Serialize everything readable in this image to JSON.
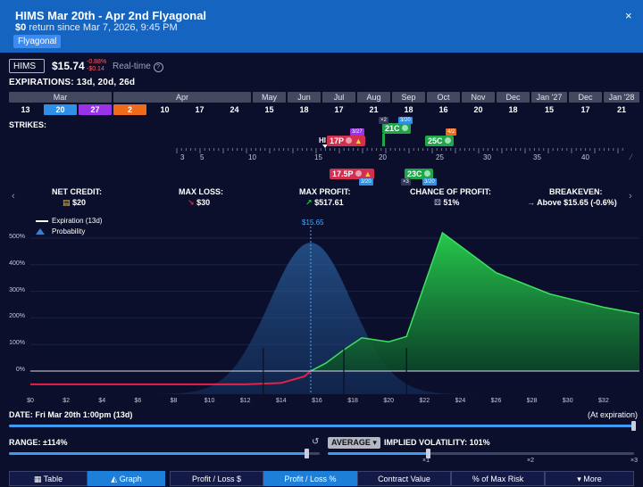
{
  "header": {
    "title": "HIMS Mar 20th - Apr 2nd Flyagonal",
    "return_amount": "$0",
    "return_text": "return since Mar 7, 2026, 9:45 PM",
    "tag": "Flyagonal",
    "close": "×"
  },
  "ticker": {
    "symbol": "HIMS",
    "price": "$15.74",
    "change_pct": "-0.88%",
    "change_abs": "-$0.14",
    "realtime": "Real-time",
    "info": "?"
  },
  "expirations": {
    "label": "EXPIRATIONS: 13d, 20d, 26d",
    "months": [
      "Mar",
      "Apr",
      "May",
      "Jun",
      "Jul",
      "Aug",
      "Sep",
      "Oct",
      "Nov",
      "Dec",
      "Jan '27",
      "Dec",
      "Jan '28"
    ],
    "days": [
      "13",
      "20",
      "27",
      "2",
      "10",
      "17",
      "24",
      "15",
      "18",
      "17",
      "21",
      "18",
      "16",
      "20",
      "18",
      "15",
      "17",
      "21"
    ]
  },
  "strikes": {
    "label": "STRIKES:",
    "hi": "HI",
    "axis": [
      "3",
      "5",
      "10",
      "15",
      "20",
      "25",
      "30",
      "35",
      "40"
    ],
    "legs": [
      {
        "label": "17P",
        "date": "3/27"
      },
      {
        "label": "21C",
        "date": "3/20",
        "qty": "×2"
      },
      {
        "label": "25C",
        "date": "4/2"
      },
      {
        "label": "17.5P",
        "date": "3/20"
      },
      {
        "label": "23C",
        "date": "3/20",
        "qty": "×3"
      }
    ],
    "colors": {
      "put": "#d32f4e",
      "call": "#1fa64a",
      "orange": "#f06a1c",
      "purple": "#9a32e8",
      "blue": "#2d8fe6"
    }
  },
  "stats": [
    {
      "label": "NET CREDIT:",
      "value": "$20",
      "icon": "coins-icon"
    },
    {
      "label": "MAX LOSS:",
      "value": "$30",
      "icon": "arrow-down-right-icon"
    },
    {
      "label": "MAX PROFIT:",
      "value": "$517.61",
      "icon": "arrow-up-right-icon"
    },
    {
      "label": "CHANCE OF PROFIT:",
      "value": "51%",
      "icon": "dice-icon"
    },
    {
      "label": "BREAKEVEN:",
      "value": "Above $15.65 (-0.6%)",
      "icon": "arrow-right-icon"
    }
  ],
  "chart": {
    "legend_expiration": "Expiration (13d)",
    "legend_probability": "Probability",
    "price_marker": "$15.65",
    "y_ticks": [
      "500%",
      "400%",
      "300%",
      "200%",
      "100%",
      "0%"
    ],
    "x_ticks": [
      "$0",
      "$2",
      "$4",
      "$6",
      "$8",
      "$10",
      "$12",
      "$14",
      "$16",
      "$18",
      "$20",
      "$22",
      "$24",
      "$26",
      "$28",
      "$30",
      "$32"
    ]
  },
  "chart_data": {
    "type": "area",
    "xlabel": "",
    "ylabel": "",
    "xlim": [
      0,
      34
    ],
    "ylim": [
      -50,
      580
    ],
    "series": [
      {
        "name": "Expiration (13d)",
        "points": [
          [
            0,
            -50
          ],
          [
            12,
            -50
          ],
          [
            14,
            -45
          ],
          [
            15.3,
            -20
          ],
          [
            15.65,
            0
          ],
          [
            16.5,
            30
          ],
          [
            17.5,
            80
          ],
          [
            18.5,
            125
          ],
          [
            20,
            110
          ],
          [
            21,
            130
          ],
          [
            23,
            520
          ],
          [
            26,
            370
          ],
          [
            29,
            290
          ],
          [
            32,
            240
          ],
          [
            34,
            215
          ]
        ]
      }
    ],
    "probability_peak_x": 15.65,
    "colors": {
      "profit": "#1fce4a",
      "loss": "#e3224a",
      "probability": "#1e4c86",
      "marker": "#4aa8ff"
    }
  },
  "controls": {
    "date_label": "DATE:",
    "date_value": "Fri Mar 20th 1:00pm (13d)",
    "at_expiration": "(At expiration)",
    "range_label": "RANGE: ±114%",
    "reset_glyph": "↺",
    "average": "AVERAGE",
    "iv_label": "IMPLIED VOLATILITY: 101%",
    "iv_ticks": [
      "×1",
      "×2",
      "×3"
    ],
    "date_fill": 1.0,
    "range_fill": 0.48,
    "iv_fill": 0.33
  },
  "tabs": [
    "Table",
    "Graph",
    "Profit / Loss $",
    "Profit / Loss %",
    "Contract Value",
    "% of Max Risk",
    "More"
  ]
}
